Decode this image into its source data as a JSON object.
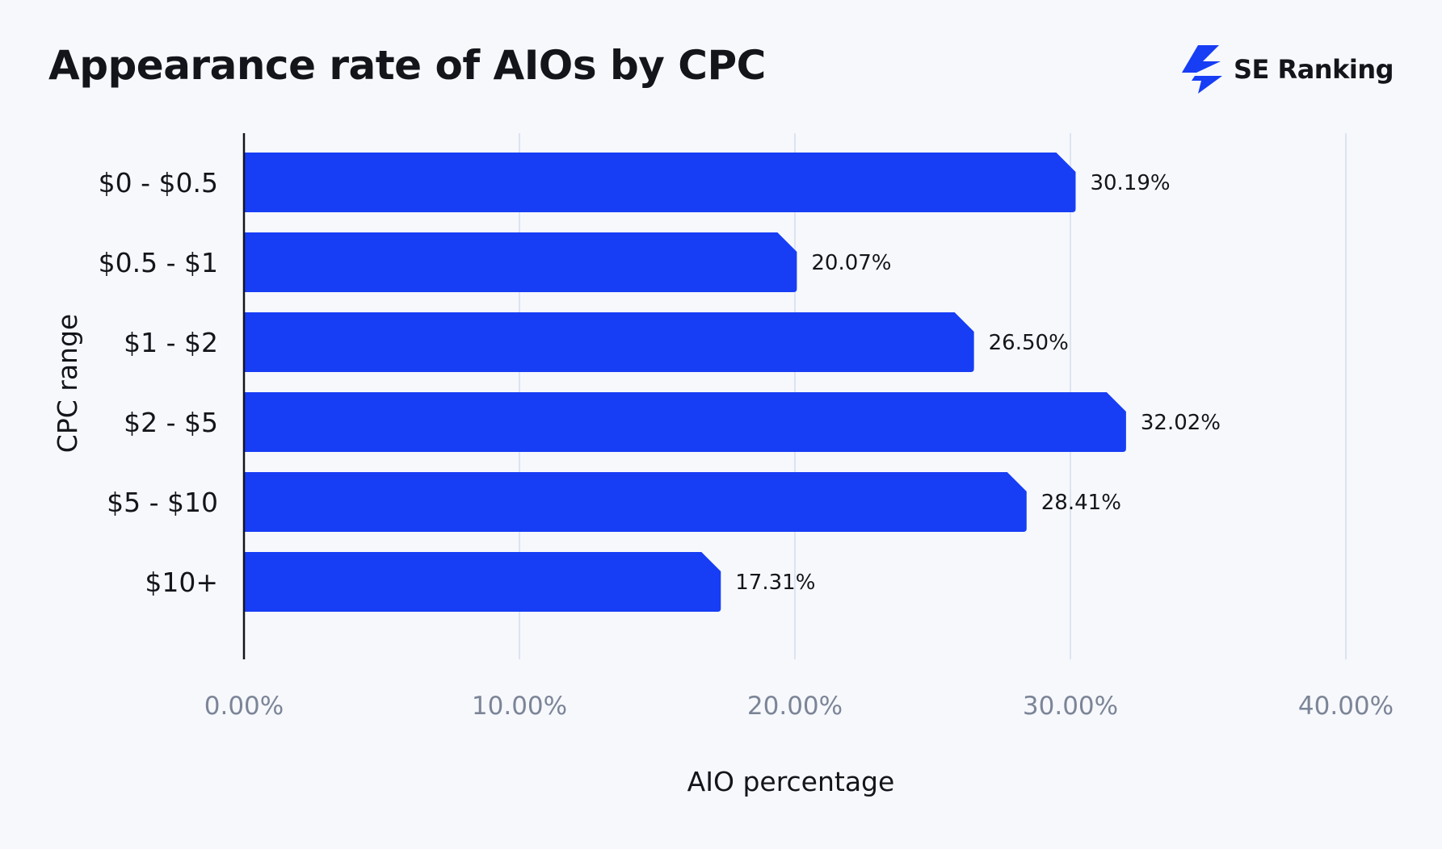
{
  "brand": {
    "name": "SE Ranking",
    "logo_icon": "se-ranking-bolt-icon",
    "logo_color": "#173df5"
  },
  "colors": {
    "bar": "#173df5",
    "grid": "#dde4ef",
    "axis": "#14151b",
    "tick_text": "#7c8597",
    "background": "#f6f8fc"
  },
  "chart_data": {
    "type": "bar",
    "orientation": "horizontal",
    "title": "Appearance rate of AIOs by CPC",
    "xlabel": "AIO percentage",
    "ylabel": "CPC range",
    "categories": [
      "$0 - $0.5",
      "$0.5 - $1",
      "$1 - $2",
      "$2 - $5",
      "$5 - $10",
      "$10+"
    ],
    "values": [
      30.19,
      20.07,
      26.5,
      32.02,
      28.41,
      17.31
    ],
    "value_labels": [
      "30.19%",
      "20.07%",
      "26.50%",
      "32.02%",
      "28.41%",
      "17.31%"
    ],
    "xlim": [
      0,
      40
    ],
    "xticks": [
      0,
      10,
      20,
      30,
      40
    ],
    "xtick_labels": [
      "0.00%",
      "10.00%",
      "20.00%",
      "30.00%",
      "40.00%"
    ],
    "grid": "vertical",
    "legend": "none"
  }
}
